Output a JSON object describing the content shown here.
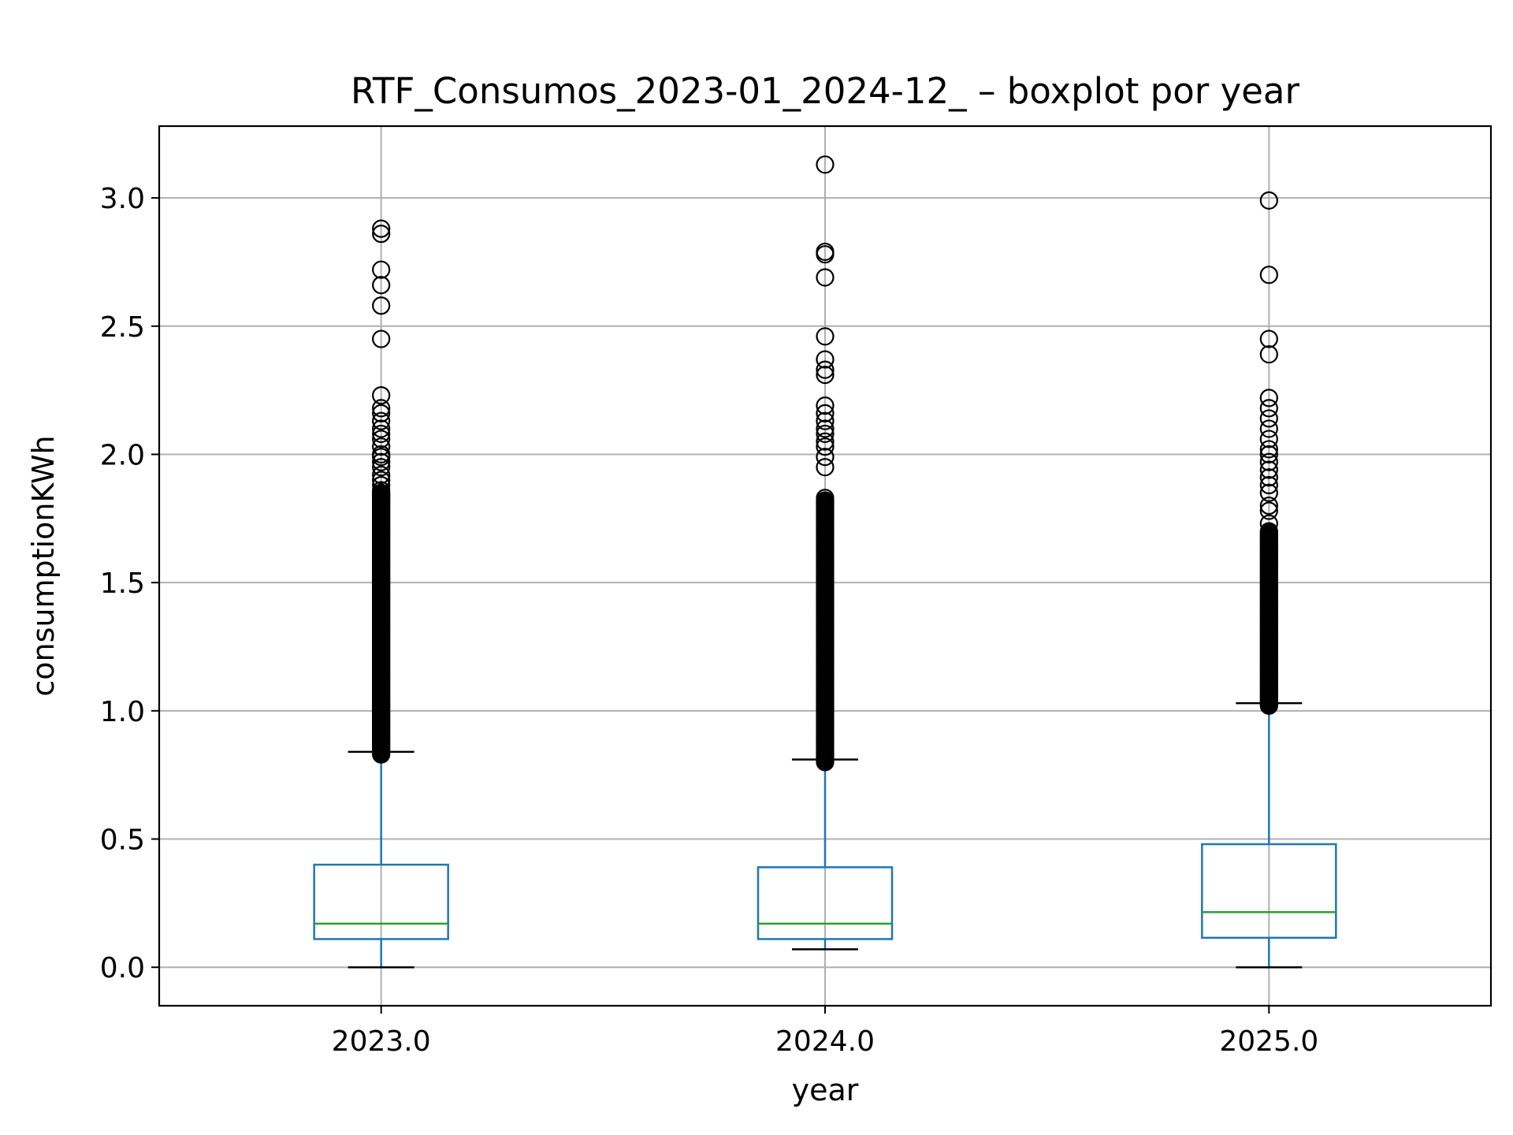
{
  "chart_data": {
    "type": "boxplot",
    "title": "RTF_Consumos_2023-01_2024-12_ – boxplot por year",
    "xlabel": "year",
    "ylabel": "consumptionKWh",
    "categories": [
      "2023.0",
      "2024.0",
      "2025.0"
    ],
    "ylim": [
      -0.15,
      3.28
    ],
    "yticks": [
      0.0,
      0.5,
      1.0,
      1.5,
      2.0,
      2.5,
      3.0
    ],
    "ytick_labels": [
      "0.0",
      "0.5",
      "1.0",
      "1.5",
      "2.0",
      "2.5",
      "3.0"
    ],
    "grid": true,
    "colors": {
      "box": "#1f77b4",
      "median": "#2ca02c",
      "whisker_cap": "#000000",
      "flier": "#000000",
      "grid": "#b0b0b0"
    },
    "boxes": [
      {
        "category": "2023.0",
        "whisker_low": 0.0,
        "q1": 0.11,
        "median": 0.17,
        "q3": 0.4,
        "whisker_high": 0.84,
        "outliers_dense_range": [
          0.83,
          1.85
        ],
        "outliers": [
          1.86,
          1.88,
          1.9,
          1.92,
          1.95,
          1.97,
          1.99,
          2.0,
          2.03,
          2.06,
          2.08,
          2.1,
          2.13,
          2.16,
          2.18,
          2.23,
          2.45,
          2.58,
          2.66,
          2.72,
          2.86,
          2.88
        ]
      },
      {
        "category": "2024.0",
        "whisker_low": 0.07,
        "q1": 0.11,
        "median": 0.17,
        "q3": 0.39,
        "whisker_high": 0.81,
        "outliers_dense_range": [
          0.8,
          1.82
        ],
        "outliers": [
          1.83,
          1.95,
          1.99,
          2.03,
          2.05,
          2.08,
          2.1,
          2.13,
          2.16,
          2.19,
          2.31,
          2.33,
          2.37,
          2.46,
          2.69,
          2.78,
          2.79,
          3.13
        ]
      },
      {
        "category": "2025.0",
        "whisker_low": 0.0,
        "q1": 0.115,
        "median": 0.215,
        "q3": 0.48,
        "whisker_high": 1.03,
        "outliers_dense_range": [
          1.02,
          1.7
        ],
        "outliers": [
          1.73,
          1.78,
          1.8,
          1.85,
          1.88,
          1.91,
          1.94,
          1.97,
          2.0,
          2.02,
          2.06,
          2.1,
          2.14,
          2.18,
          2.22,
          2.39,
          2.45,
          2.7,
          2.99
        ]
      }
    ]
  }
}
